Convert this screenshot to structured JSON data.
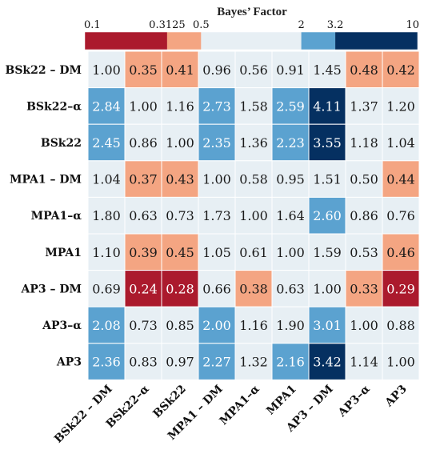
{
  "chart_data": {
    "type": "heatmap",
    "title": "Bayes’ Factor",
    "rows": [
      "BSk22 – DM",
      "BSk22–α",
      "BSk22",
      "MPA1 – DM",
      "MPA1–α",
      "MPA1",
      "AP3 – DM",
      "AP3–α",
      "AP3"
    ],
    "columns": [
      "BSk22 – DM",
      "BSk22–α",
      "BSk22",
      "MPA1 – DM",
      "MPA1–α",
      "MPA1",
      "AP3 – DM",
      "AP3–α",
      "AP3"
    ],
    "values": [
      [
        1.0,
        0.35,
        0.41,
        0.96,
        0.56,
        0.91,
        1.45,
        0.48,
        0.42
      ],
      [
        2.84,
        1.0,
        1.16,
        2.73,
        1.58,
        2.59,
        4.11,
        1.37,
        1.2
      ],
      [
        2.45,
        0.86,
        1.0,
        2.35,
        1.36,
        2.23,
        3.55,
        1.18,
        1.04
      ],
      [
        1.04,
        0.37,
        0.43,
        1.0,
        0.58,
        0.95,
        1.51,
        0.5,
        0.44
      ],
      [
        1.8,
        0.63,
        0.73,
        1.73,
        1.0,
        1.64,
        2.6,
        0.86,
        0.76
      ],
      [
        1.1,
        0.39,
        0.45,
        1.05,
        0.61,
        1.0,
        1.59,
        0.53,
        0.46
      ],
      [
        0.69,
        0.24,
        0.28,
        0.66,
        0.38,
        0.63,
        1.0,
        0.33,
        0.29
      ],
      [
        2.08,
        0.73,
        0.85,
        2.0,
        1.16,
        1.9,
        3.01,
        1.0,
        0.88
      ],
      [
        2.36,
        0.83,
        0.97,
        2.27,
        1.32,
        2.16,
        3.42,
        1.14,
        1.0
      ]
    ],
    "colorbar": {
      "scale": "log",
      "tick_labels": [
        "0.1",
        "0.3125",
        "0.5",
        "2",
        "3.2",
        "10"
      ],
      "tick_values": [
        0.1,
        0.3125,
        0.5,
        2,
        3.2,
        10
      ],
      "bins": [
        {
          "min": 0.1,
          "max": 0.3125,
          "color": "#ab1a2d"
        },
        {
          "min": 0.3125,
          "max": 0.5,
          "color": "#f4a582"
        },
        {
          "min": 0.5,
          "max": 2,
          "color": "#e7eff4"
        },
        {
          "min": 2,
          "max": 3.2,
          "color": "#5ba2d0"
        },
        {
          "min": 3.2,
          "max": 10,
          "color": "#053061"
        }
      ]
    },
    "text_colors": {
      "dark": "#1a1a1a",
      "light": "#ffffff"
    }
  }
}
